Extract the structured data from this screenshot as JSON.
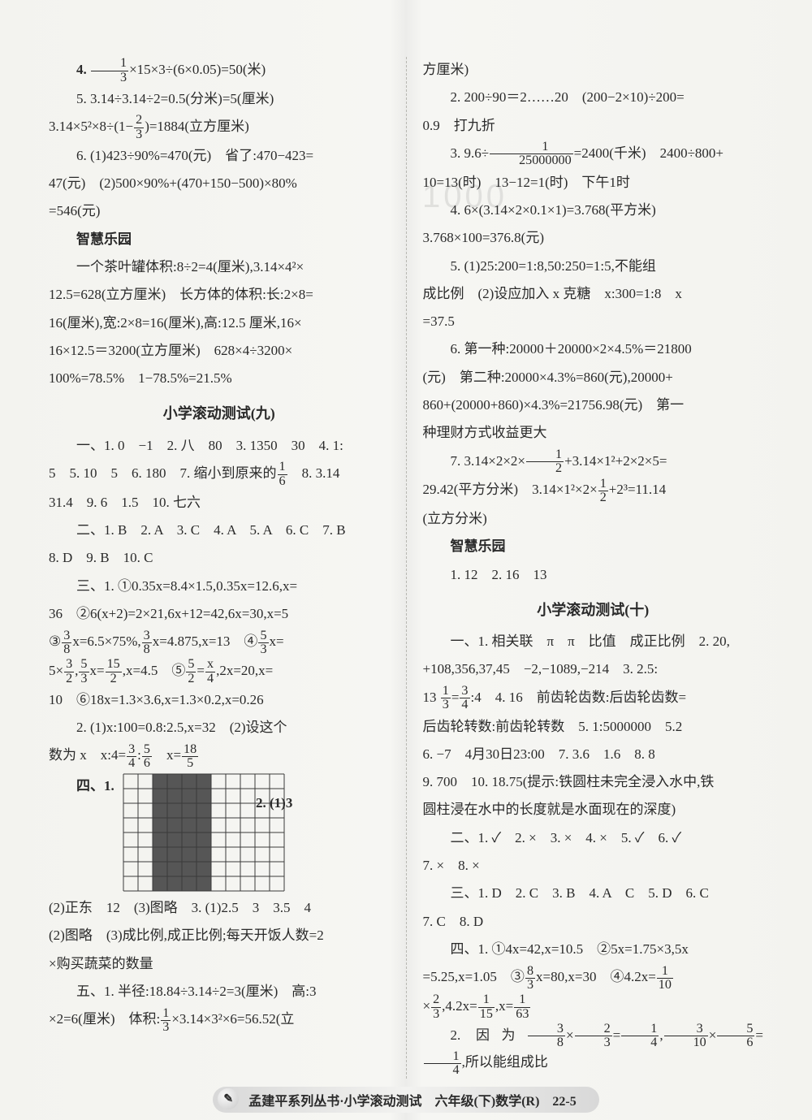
{
  "left": {
    "l1": "4. ",
    "l1b": "×15×3÷(6×0.05)=50(米)",
    "l2": "5. 3.14÷3.14÷2=0.5(分米)=5(厘米)",
    "l3a": "3.14×5²×8÷(1−",
    "l3b": ")=1884(立方厘米)",
    "l4": "6. (1)423÷90%=470(元)　省了:470−423=",
    "l5": "47(元)　(2)500×90%+(470+150−500)×80%",
    "l6": "=546(元)",
    "zh": "智慧乐园",
    "l7": "一个茶叶罐体积:8÷2=4(厘米),3.14×4²×",
    "l8": "12.5=628(立方厘米)　长方体的体积:长:2×8=",
    "l9": "16(厘米),宽:2×8=16(厘米),高:12.5 厘米,16×",
    "l10": "16×12.5＝3200(立方厘米)　628×4÷3200×",
    "l11": "100%=78.5%　1−78.5%=21.5%",
    "title9": "小学滚动测试(九)",
    "l12": "一、1. 0　−1　2. 八　80　3. 1350　30　4. 1:",
    "l13a": "5　5. 10　5　6. 180　7. 缩小到原来的",
    "l13b": "　8. 3.14",
    "l14": "31.4　9. 6　1.5　10. 七六",
    "l15": "二、1. B　2. A　3. C　4. A　5. A　6. C　7. B",
    "l16": "8. D　9. B　10. C",
    "l17": "三、1. ①0.35x=8.4×1.5,0.35x=12.6,x=",
    "l18": "36　②6(x+2)=2×21,6x+12=42,6x=30,x=5",
    "l19a": "③",
    "l19b": "x=6.5×75%,",
    "l19c": "x=4.875,x=13　④",
    "l19d": "x=",
    "l20a": "5×",
    "l20b": ",",
    "l20c": "x=",
    "l20d": ",x=4.5　⑤",
    "l20e": "=",
    "l20f": ",2x=20,x=",
    "l21": "10　⑥18x=1.3×3.6,x=1.3×0.2,x=0.26",
    "l22": "2. (1)x:100=0.8:2.5,x=32　(2)设这个",
    "l23a": "数为 x　x:4=",
    "l23b": ":",
    "l23c": "　x=",
    "fig_label": "四、1.",
    "side": "2. (1)3",
    "l24": "(2)正东　12　(3)图略　3. (1)2.5　3　3.5　4",
    "l25": "(2)图略　(3)成比例,成正比例;每天开饭人数=2",
    "l26": "×购买蔬菜的数量",
    "l27": "五、1. 半径:18.84÷3.14÷2=3(厘米)　高:3",
    "l28a": "×2=6(厘米)　体积:",
    "l28b": "×3.14×3²×6=56.52(立"
  },
  "right": {
    "r1": "方厘米)",
    "r2": "2. 200÷90＝2……20　(200−2×10)÷200=",
    "r3": "0.9　打九折",
    "r4a": "3. 9.6÷",
    "r4b": "=2400(千米)　2400÷800+",
    "r5": "10=13(时)　13−12=1(时)　下午1时",
    "r6": "4. 6×(3.14×2×0.1×1)=3.768(平方米)",
    "r7": "3.768×100=376.8(元)",
    "r8": "5. (1)25:200=1:8,50:250=1:5,不能组",
    "r9": "成比例　(2)设应加入 x 克糖　x:300=1:8　x",
    "r10": "=37.5",
    "r11": "6. 第一种:20000＋20000×2×4.5%＝21800",
    "r12": "(元)　第二种:20000×4.3%=860(元),20000+",
    "r13": "860+(20000+860)×4.3%=21756.98(元)　第一",
    "r14": "种理财方式收益更大",
    "r15a": "7. 3.14×2×2×",
    "r15b": "+3.14×1²+2×2×5=",
    "r16a": "29.42(平方分米)　3.14×1²×2×",
    "r16b": "+2³=11.14",
    "r17": "(立方分米)",
    "zh": "智慧乐园",
    "r18": "1. 12　2. 16　13",
    "title10": "小学滚动测试(十)",
    "r19": "一、1. 相关联　π　π　比值　成正比例　2. 20,",
    "r20": "+108,356,37,45　−2,−1089,−214　3. 2.5:",
    "r21a": "13 ",
    "r21b": "=",
    "r21c": ":4　4. 16　前齿轮齿数:后齿轮齿数=",
    "r22": "后齿轮转数:前齿轮转数　5. 1:5000000　5.2",
    "r23": "6. −7　4月30日23:00　7. 3.6　1.6　8. 8",
    "r24": "9. 700　10. 18.75(提示:铁圆柱未完全浸入水中,铁",
    "r25": "圆柱浸在水中的长度就是水面现在的深度)",
    "r26": "二、1. ✓　2. ×　3. ×　4. ×　5. ✓　6. ✓",
    "r27": "7. ×　8. ×",
    "r28": "三、1. D　2. C　3. B　4. A　C　5. D　6. C",
    "r29": "7. C　8. D",
    "r30": "四、1. ①4x=42,x=10.5　②5x=1.75×3,5x",
    "r31a": "=5.25,x=1.05　③",
    "r31b": "x=80,x=30　④4.2x=",
    "r32a": "×",
    "r32b": ",4.2x=",
    "r32c": ",x=",
    "r33a": "2. 因为",
    "r33b": "×",
    "r33c": "=",
    "r33d": ",",
    "r33e": "×",
    "r33f": "=",
    "r33g": ",所以能组成比"
  },
  "fractions": {
    "f13": {
      "n": "1",
      "d": "3"
    },
    "f23": {
      "n": "2",
      "d": "3"
    },
    "f16": {
      "n": "1",
      "d": "6"
    },
    "f38": {
      "n": "3",
      "d": "8"
    },
    "f53": {
      "n": "5",
      "d": "3"
    },
    "f32": {
      "n": "3",
      "d": "2"
    },
    "f152": {
      "n": "15",
      "d": "2"
    },
    "f52": {
      "n": "5",
      "d": "2"
    },
    "fx4": {
      "n": "x",
      "d": "4"
    },
    "f34": {
      "n": "3",
      "d": "4"
    },
    "f56": {
      "n": "5",
      "d": "6"
    },
    "f185": {
      "n": "18",
      "d": "5"
    },
    "f12": {
      "n": "1",
      "d": "2"
    },
    "f83": {
      "n": "8",
      "d": "3"
    },
    "f110": {
      "n": "1",
      "d": "10"
    },
    "f115": {
      "n": "1",
      "d": "15"
    },
    "f163": {
      "n": "1",
      "d": "63"
    },
    "f310": {
      "n": "3",
      "d": "10"
    },
    "f14": {
      "n": "1",
      "d": "4"
    },
    "fbig": {
      "n": "1",
      "d": "25000000"
    }
  },
  "grid": {
    "cols": 11,
    "rows": 8,
    "cell": 18,
    "stroke": "#3a3a3a",
    "fill_darkcols_from": 2,
    "fill_darkcols_to": 5,
    "fill_color": "#565656"
  },
  "footer": {
    "icon": "✎",
    "text": "孟建平系列丛书·小学滚动测试　六年级(下)数学(R)　22-5"
  },
  "colors": {
    "text": "#2a2a2a",
    "bg": "#f5f5f2"
  }
}
